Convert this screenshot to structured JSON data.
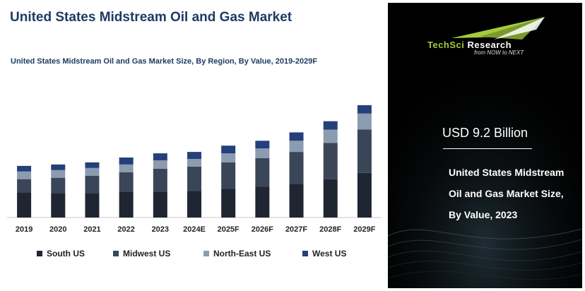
{
  "header": {
    "title": "United States Midstream Oil and Gas Market",
    "subtitle": "United States Midstream Oil and Gas Market Size, By Region, By Value, 2019-2029F"
  },
  "chart_data": {
    "type": "bar",
    "stacked": true,
    "title": "United States Midstream Oil and Gas Market Size, By Region, By Value, 2019-2029F",
    "categories": [
      "2019",
      "2020",
      "2021",
      "2022",
      "2023",
      "2024E",
      "2025F",
      "2026F",
      "2027F",
      "2028F",
      "2029F"
    ],
    "series": [
      {
        "name": "South US",
        "color": "#1f2632",
        "values": [
          36,
          35,
          35,
          37,
          37,
          38,
          41,
          44,
          48,
          55,
          64
        ]
      },
      {
        "name": "Midwest US",
        "color": "#3a4658",
        "values": [
          19,
          22,
          25,
          28,
          33,
          35,
          38,
          41,
          46,
          52,
          62
        ]
      },
      {
        "name": "North-East US",
        "color": "#8b9bb0",
        "values": [
          11,
          11,
          11,
          11,
          12,
          11,
          13,
          14,
          16,
          19,
          23
        ]
      },
      {
        "name": "West US",
        "color": "#24407a",
        "values": [
          8,
          8,
          8,
          10,
          10,
          10,
          11,
          11,
          12,
          12,
          12
        ]
      }
    ],
    "ylim": [
      0,
      170
    ],
    "grid": false,
    "legend_position": "bottom"
  },
  "panel": {
    "logo": {
      "brand_prefix": "TechSci",
      "brand_suffix": " Research",
      "tagline": "from NOW to NEXT"
    },
    "value": "USD 9.2 Billion",
    "description": "United States Midstream Oil and Gas Market Size, By Value, 2023"
  }
}
